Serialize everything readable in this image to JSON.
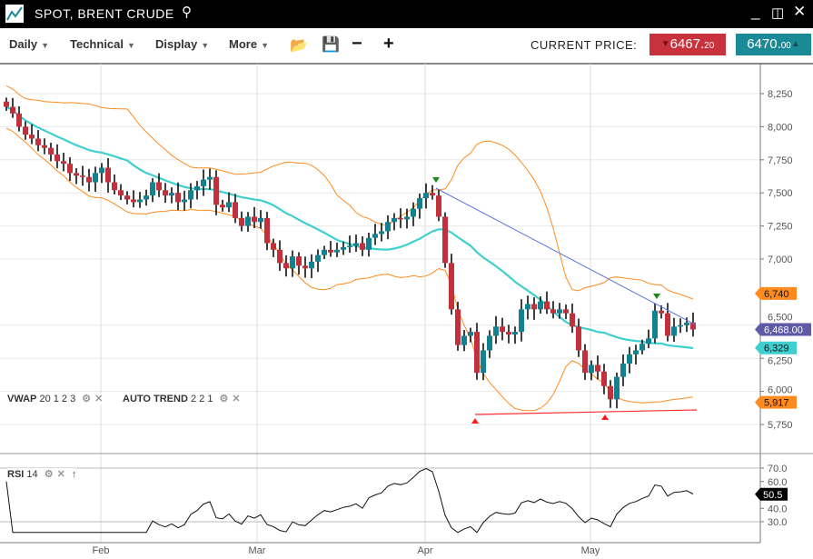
{
  "window": {
    "title": "SPOT, BRENT CRUDE",
    "icons": [
      "chart-logo-icon",
      "search-icon",
      "minimize-icon",
      "popout-icon",
      "close-icon"
    ]
  },
  "toolbar": {
    "menus": [
      {
        "label": "Daily"
      },
      {
        "label": "Technical"
      },
      {
        "label": "Display"
      },
      {
        "label": "More"
      }
    ],
    "tools": [
      "folder-open-icon",
      "save-icon",
      "zoom-out-icon",
      "zoom-in-icon"
    ],
    "minus": "−",
    "plus": "+",
    "current_price_label": "CURRENT PRICE:",
    "bid": {
      "main": "6467.",
      "decimals": "20",
      "color": "#c8323c",
      "direction": "down"
    },
    "ask": {
      "main": "6470.",
      "decimals": "00",
      "color": "#1a8a96",
      "direction": "up"
    }
  },
  "indicators": {
    "vwap": {
      "name": "VWAP",
      "params": "20 1 2 3"
    },
    "autotrend": {
      "name": "AUTO TREND",
      "params": "2 2 1"
    },
    "rsi": {
      "name": "RSI",
      "params": "14"
    }
  },
  "chart_data": {
    "type": "candlestick",
    "x_ticks": [
      "Feb",
      "Mar",
      "Apr",
      "May"
    ],
    "y_ticks": [
      "8,250",
      "8,000",
      "7,750",
      "7,500",
      "7,250",
      "7,000",
      "6,500",
      "6,250",
      "6,000",
      "5,750"
    ],
    "y_tick_values": [
      8250,
      8000,
      7750,
      7500,
      7250,
      7000,
      6500,
      6250,
      6000,
      5750
    ],
    "ylim": [
      5700,
      8300
    ],
    "close": [
      8150,
      8100,
      8000,
      7940,
      7910,
      7860,
      7840,
      7790,
      7740,
      7720,
      7650,
      7630,
      7620,
      7580,
      7650,
      7690,
      7580,
      7520,
      7480,
      7450,
      7430,
      7450,
      7480,
      7580,
      7520,
      7480,
      7500,
      7430,
      7450,
      7520,
      7550,
      7600,
      7620,
      7410,
      7390,
      7430,
      7310,
      7250,
      7320,
      7280,
      7310,
      7120,
      7070,
      6970,
      6930,
      7020,
      6950,
      6930,
      6980,
      7030,
      7070,
      7050,
      7070,
      7090,
      7100,
      7120,
      7070,
      7160,
      7190,
      7210,
      7280,
      7310,
      7300,
      7320,
      7380,
      7460,
      7500,
      7480,
      7320,
      6970,
      6620,
      6350,
      6420,
      6450,
      6140,
      6310,
      6420,
      6490,
      6450,
      6430,
      6450,
      6620,
      6660,
      6620,
      6680,
      6620,
      6590,
      6620,
      6590,
      6490,
      6310,
      6140,
      6200,
      6150,
      6040,
      5940,
      6110,
      6210,
      6280,
      6310,
      6360,
      6400,
      6610,
      6590,
      6420,
      6490,
      6500,
      6520,
      6468
    ],
    "colors": {
      "up": "#128290",
      "down": "#c3303b",
      "ma": "#3fcfcf",
      "bands": "#ff8a1f",
      "trend_down": "#5b72e0",
      "trend_up": "#ff2a2a",
      "last": "#5e5aa6"
    },
    "price_badges": [
      {
        "text": "6,740",
        "value": 6740,
        "color": "#ff8a1f"
      },
      {
        "text": "6,468.00",
        "value": 6468,
        "color": "#5e5aa6"
      },
      {
        "text": "6,329",
        "value": 6329,
        "color": "#3fcfcf"
      },
      {
        "text": "5,917",
        "value": 5917,
        "color": "#ff8a1f"
      }
    ],
    "rsi": {
      "y_ticks": [
        "70.0",
        "60.0",
        "40.0",
        "30.0"
      ],
      "y_tick_values": [
        70,
        60,
        40,
        30
      ],
      "last": "50.5",
      "last_value": 50.5
    }
  }
}
